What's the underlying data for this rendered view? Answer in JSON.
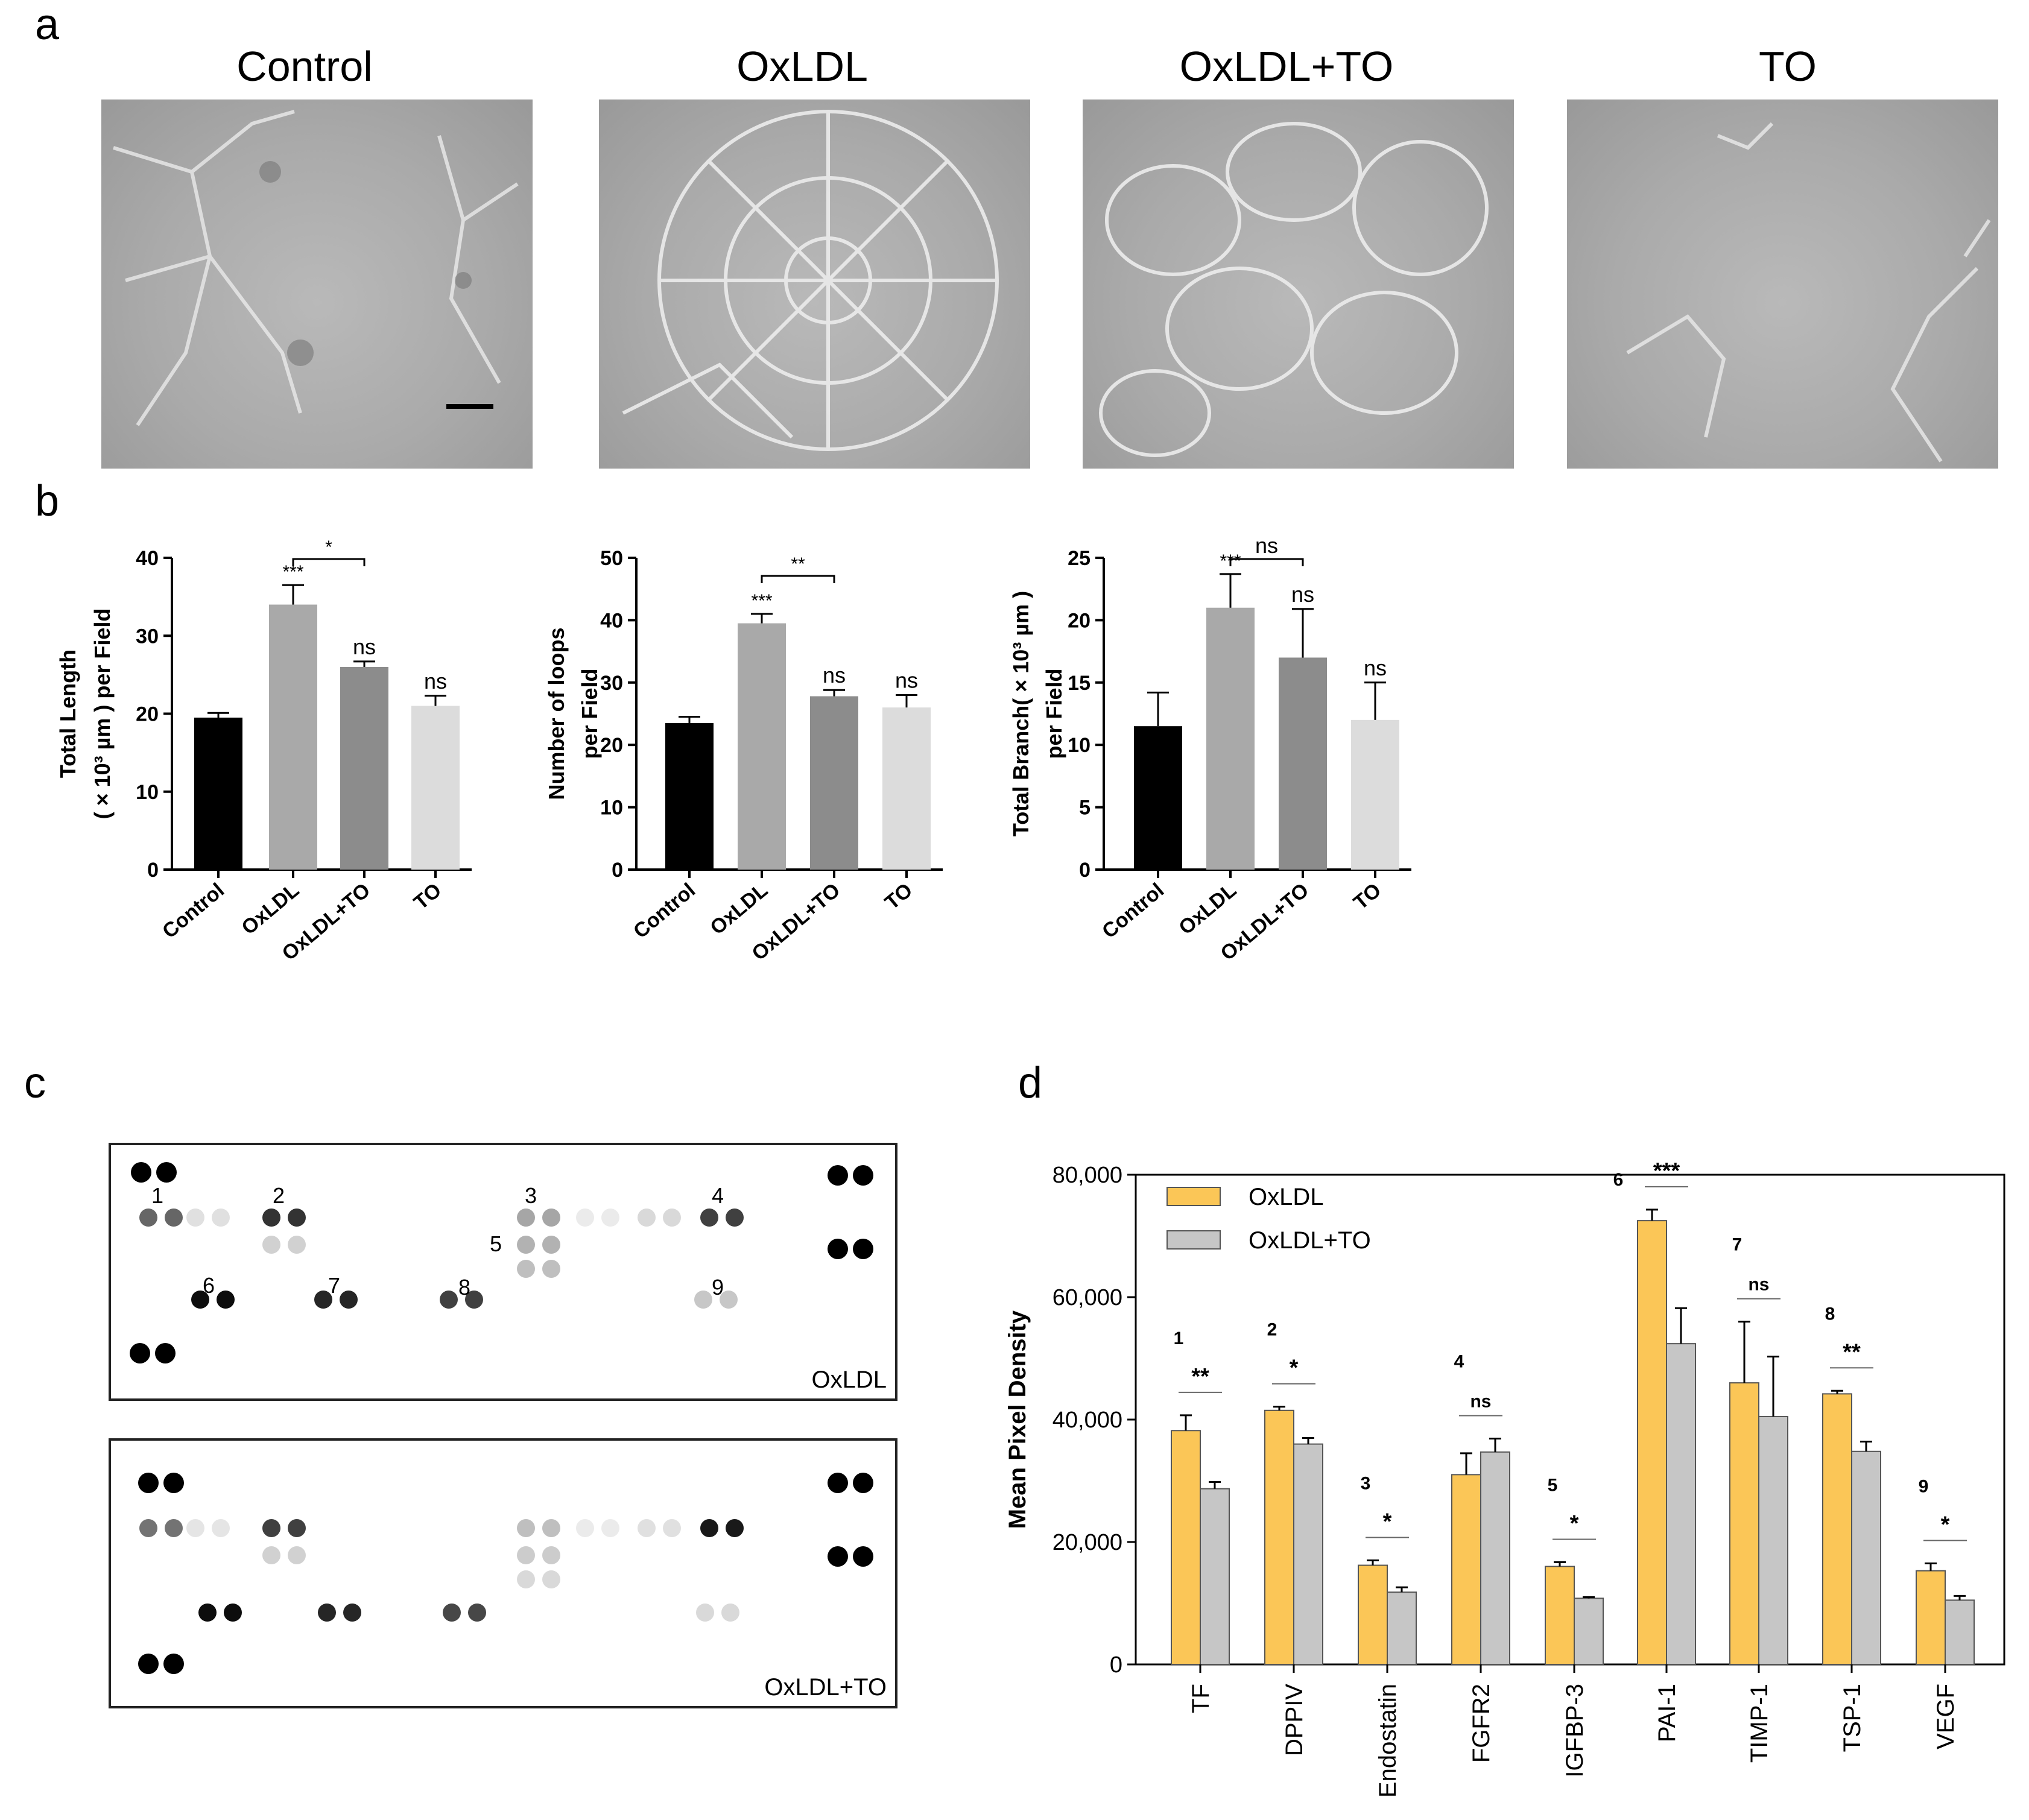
{
  "panels": {
    "a": "a",
    "b": "b",
    "c": "c",
    "d": "d"
  },
  "panel_a": {
    "titles": [
      "Control",
      "OxLDL",
      "OxLDL+TO",
      "TO"
    ]
  },
  "panel_c": {
    "blots": [
      {
        "label": "OxLDL",
        "numbers": [
          "1",
          "2",
          "3",
          "4",
          "5",
          "6",
          "7",
          "8",
          "9"
        ]
      },
      {
        "label": "OxLDL+TO"
      }
    ]
  },
  "chart_data": [
    {
      "type": "bar",
      "panel": "b-1",
      "categories": [
        "Control",
        "OxLDL",
        "OxLDL+TO",
        "TO"
      ],
      "values": [
        19.5,
        34,
        26,
        21
      ],
      "errors": [
        0.6,
        2.5,
        0.7,
        1.3
      ],
      "colors": [
        "#000000",
        "#a9a9a9",
        "#8c8c8c",
        "#dcdcdc"
      ],
      "ylabel_line1": "Total Length",
      "ylabel_line2": "( × 10³ µm ) per Field",
      "ylim": [
        0,
        40
      ],
      "yticks": [
        0,
        10,
        20,
        30,
        40
      ],
      "sig_labels": [
        "",
        "***",
        "ns",
        "ns"
      ],
      "bracket": {
        "from": 1,
        "to": 2,
        "label": "*"
      }
    },
    {
      "type": "bar",
      "panel": "b-2",
      "categories": [
        "Control",
        "OxLDL",
        "OxLDL+TO",
        "TO"
      ],
      "values": [
        23.5,
        39.5,
        27.8,
        26
      ],
      "errors": [
        1.0,
        1.5,
        1.0,
        2.0
      ],
      "colors": [
        "#000000",
        "#a9a9a9",
        "#8c8c8c",
        "#dcdcdc"
      ],
      "ylabel_line1": "Number of loops",
      "ylabel_line2": "per Field",
      "ylim": [
        0,
        50
      ],
      "yticks": [
        0,
        10,
        20,
        30,
        40,
        50
      ],
      "sig_labels": [
        "",
        "***",
        "ns",
        "ns"
      ],
      "bracket": {
        "from": 1,
        "to": 2,
        "label": "**"
      }
    },
    {
      "type": "bar",
      "panel": "b-3",
      "categories": [
        "Control",
        "OxLDL",
        "OxLDL+TO",
        "TO"
      ],
      "values": [
        11.5,
        21,
        17,
        12
      ],
      "errors": [
        2.7,
        2.7,
        3.9,
        3.0
      ],
      "colors": [
        "#000000",
        "#a9a9a9",
        "#8c8c8c",
        "#dcdcdc"
      ],
      "ylabel_line1": "Total Branch( × 10³ µm )",
      "ylabel_line2": "per Field",
      "ylim": [
        0,
        25
      ],
      "yticks": [
        0,
        5,
        10,
        15,
        20,
        25
      ],
      "sig_labels": [
        "",
        "***",
        "ns",
        "ns"
      ],
      "bracket": {
        "from": 1,
        "to": 2,
        "label": "ns"
      }
    },
    {
      "type": "bar",
      "panel": "d",
      "categories": [
        "TF",
        "DPPIV",
        "Endostatin",
        "FGFR2",
        "IGFBP-3",
        "PAI-1",
        "TIMP-1",
        "TSP-1",
        "VEGF"
      ],
      "series": [
        {
          "name": "OxLDL",
          "color": "#fbc657",
          "values": [
            38200,
            41500,
            16200,
            31000,
            16000,
            72500,
            46000,
            44200,
            15300
          ],
          "errors": [
            2500,
            600,
            800,
            3500,
            700,
            1800,
            10000,
            500,
            1200
          ]
        },
        {
          "name": "OxLDL+TO",
          "color": "#c6c6c6",
          "values": [
            28700,
            36000,
            11800,
            34700,
            10800,
            52400,
            40500,
            34800,
            10500
          ],
          "errors": [
            1100,
            1000,
            800,
            2200,
            200,
            5800,
            9800,
            1600,
            700
          ]
        }
      ],
      "spot_numbers": [
        "1",
        "2",
        "3",
        "4",
        "5",
        "6",
        "7",
        "8",
        "9"
      ],
      "sig_labels": [
        "**",
        "*",
        "*",
        "ns",
        "*",
        "***",
        "ns",
        "**",
        "*"
      ],
      "ylabel": "Mean Pixel Density",
      "ylim": [
        0,
        80000
      ],
      "yticks": [
        "0",
        "20,000",
        "40,000",
        "60,000",
        "80,000"
      ],
      "legend": "top-left"
    }
  ]
}
